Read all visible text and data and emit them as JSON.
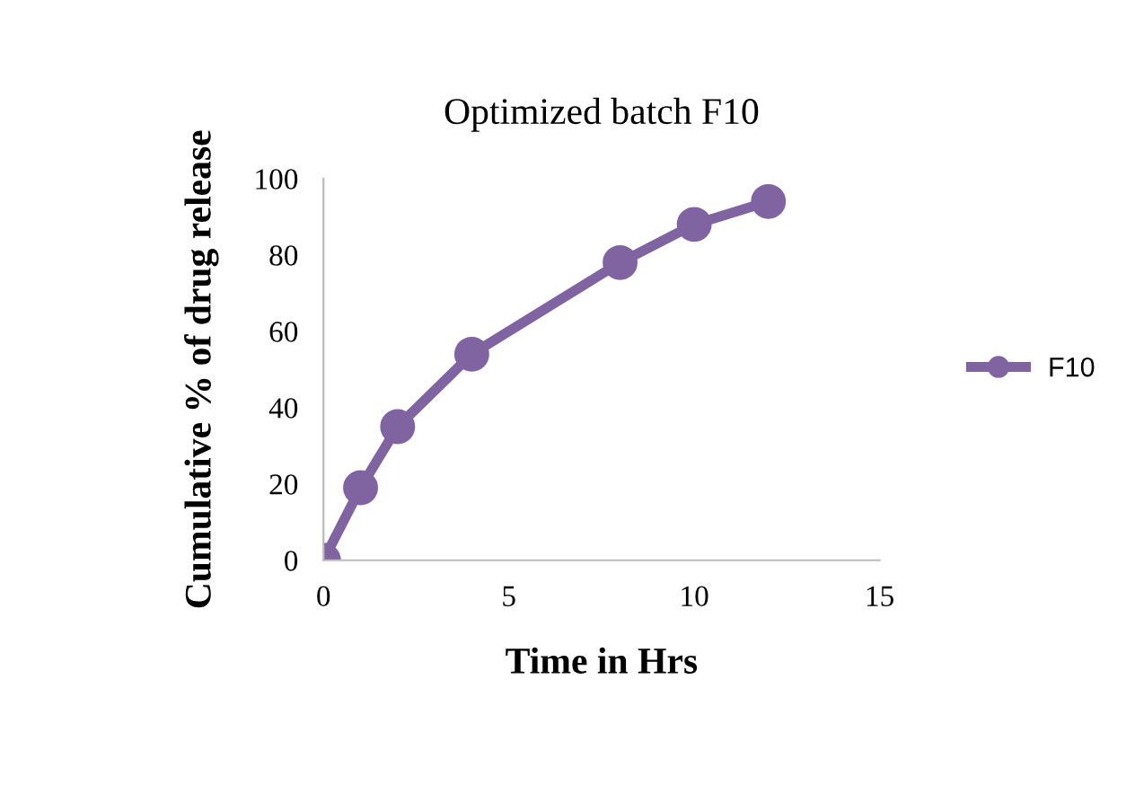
{
  "chart_data": {
    "type": "line",
    "title": "Optimized batch F10",
    "xlabel": "Time in Hrs",
    "ylabel": "Cumulative % of drug release",
    "x": [
      0,
      1,
      2,
      4,
      8,
      10,
      12
    ],
    "series": [
      {
        "name": "F10",
        "color": "#8064a2",
        "values": [
          0,
          19,
          35,
          54,
          78,
          88,
          94
        ]
      }
    ],
    "xlim": [
      0,
      15
    ],
    "xticks": [
      0,
      5,
      10,
      15
    ],
    "ylim": [
      0,
      100
    ],
    "yticks": [
      0,
      20,
      40,
      60,
      80,
      100
    ],
    "grid": false,
    "legend": "right",
    "marker": "circle",
    "line_style": "solid"
  }
}
